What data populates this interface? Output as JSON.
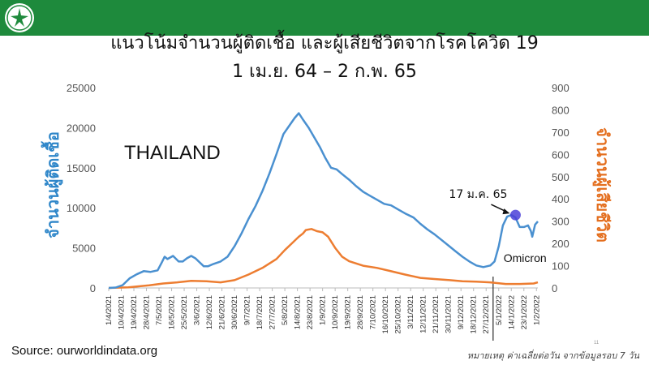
{
  "colors": {
    "header": "#1e8a3c",
    "cases": "#4a90d0",
    "deaths": "#ed7d31",
    "left_axis_label": "#2e86c9",
    "right_axis_label": "#e46f1f",
    "highlight_marker": "#4b3fd8"
  },
  "logo": {
    "icon": "ministry-of-public-health-emblem-icon"
  },
  "chart_data": {
    "type": "line",
    "title": "แนวโน้มจำนวนผู้ติดเชื้อ และผู้เสียชีวิตจากโรคโควิด 19",
    "subtitle": "1 เม.ย. 64 – 2 ก.พ. 65",
    "country_label": "THAILAND",
    "y_left_label": "จำนวนผู้ติดเชื้อ",
    "y_right_label": "จำนวนผู้เสียชีวิต",
    "y_left_lim": [
      0,
      25000
    ],
    "y_left_ticks": [
      "0",
      "5000",
      "10000",
      "15000",
      "20000",
      "25000"
    ],
    "y_right_lim": [
      0,
      900
    ],
    "y_right_ticks": [
      "0",
      "100",
      "200",
      "300",
      "400",
      "500",
      "600",
      "700",
      "800",
      "900"
    ],
    "x_range": [
      "2021-04-01",
      "2022-02-02"
    ],
    "x_ticks": [
      "1/4/2021",
      "10/4/2021",
      "19/4/2021",
      "28/4/2021",
      "7/5/2021",
      "16/5/2021",
      "25/5/2021",
      "3/6/2021",
      "12/6/2021",
      "21/6/2021",
      "30/6/2021",
      "9/7/2021",
      "18/7/2021",
      "27/7/2021",
      "5/8/2021",
      "14/8/2021",
      "23/8/2021",
      "1/9/2021",
      "10/9/2021",
      "19/9/2021",
      "28/9/2021",
      "7/10/2021",
      "16/10/2021",
      "25/10/2021",
      "3/11/2021",
      "12/11/2021",
      "21/11/2021",
      "30/11/2021",
      "9/12/2021",
      "18/12/2021",
      "27/12/2021",
      "5/1/2022",
      "14/1/2022",
      "23/1/2022",
      "1/2/2022"
    ],
    "grid": false,
    "series": [
      {
        "name": "จำนวนผู้ติดเชื้อ",
        "axis": "left",
        "x": [
          "2021-04-01",
          "2021-04-06",
          "2021-04-11",
          "2021-04-16",
          "2021-04-21",
          "2021-04-26",
          "2021-05-01",
          "2021-05-06",
          "2021-05-09",
          "2021-05-11",
          "2021-05-13",
          "2021-05-17",
          "2021-05-21",
          "2021-05-24",
          "2021-05-27",
          "2021-05-30",
          "2021-06-02",
          "2021-06-05",
          "2021-06-08",
          "2021-06-11",
          "2021-06-15",
          "2021-06-20",
          "2021-06-25",
          "2021-06-30",
          "2021-07-05",
          "2021-07-10",
          "2021-07-15",
          "2021-07-20",
          "2021-07-25",
          "2021-07-30",
          "2021-08-04",
          "2021-08-08",
          "2021-08-12",
          "2021-08-15",
          "2021-08-18",
          "2021-08-22",
          "2021-08-26",
          "2021-08-30",
          "2021-09-03",
          "2021-09-07",
          "2021-09-11",
          "2021-09-15",
          "2021-09-20",
          "2021-09-25",
          "2021-09-30",
          "2021-10-05",
          "2021-10-10",
          "2021-10-15",
          "2021-10-20",
          "2021-10-25",
          "2021-10-30",
          "2021-11-05",
          "2021-11-10",
          "2021-11-15",
          "2021-11-20",
          "2021-11-25",
          "2021-11-30",
          "2021-12-05",
          "2021-12-10",
          "2021-12-15",
          "2021-12-20",
          "2021-12-25",
          "2021-12-30",
          "2022-01-02",
          "2022-01-05",
          "2022-01-08",
          "2022-01-11",
          "2022-01-14",
          "2022-01-17",
          "2022-01-20",
          "2022-01-23",
          "2022-01-26",
          "2022-01-28",
          "2022-01-29",
          "2022-01-31",
          "2022-02-02"
        ],
        "values": [
          0,
          50,
          350,
          1200,
          1700,
          2100,
          2000,
          2200,
          3200,
          3900,
          3600,
          4000,
          3300,
          3300,
          3700,
          4000,
          3700,
          3200,
          2700,
          2700,
          3000,
          3300,
          3900,
          5200,
          6800,
          8600,
          10200,
          12100,
          14300,
          16700,
          19200,
          20200,
          21200,
          21800,
          21000,
          20000,
          18800,
          17600,
          16200,
          15000,
          14800,
          14200,
          13500,
          12700,
          12000,
          11500,
          11000,
          10500,
          10300,
          9800,
          9300,
          8800,
          8000,
          7300,
          6700,
          6000,
          5300,
          4600,
          3900,
          3300,
          2800,
          2600,
          2800,
          3300,
          5200,
          7800,
          8900,
          9100,
          8800,
          7600,
          7600,
          7800,
          7100,
          6400,
          7900,
          8300
        ]
      },
      {
        "name": "จำนวนผู้เสียชีวิต",
        "axis": "right",
        "x": [
          "2021-04-01",
          "2021-04-15",
          "2021-04-30",
          "2021-05-10",
          "2021-05-20",
          "2021-05-30",
          "2021-06-10",
          "2021-06-20",
          "2021-06-30",
          "2021-07-10",
          "2021-07-20",
          "2021-07-30",
          "2021-08-05",
          "2021-08-10",
          "2021-08-15",
          "2021-08-18",
          "2021-08-20",
          "2021-08-24",
          "2021-08-28",
          "2021-09-01",
          "2021-09-05",
          "2021-09-10",
          "2021-09-15",
          "2021-09-20",
          "2021-09-30",
          "2021-10-10",
          "2021-10-20",
          "2021-10-30",
          "2021-11-10",
          "2021-11-20",
          "2021-12-01",
          "2021-12-10",
          "2021-12-20",
          "2021-12-30",
          "2022-01-10",
          "2022-01-20",
          "2022-01-30",
          "2022-02-02"
        ],
        "values": [
          0,
          3,
          12,
          20,
          25,
          32,
          30,
          25,
          35,
          60,
          90,
          130,
          170,
          200,
          230,
          245,
          260,
          265,
          255,
          250,
          230,
          180,
          140,
          120,
          100,
          90,
          75,
          60,
          45,
          40,
          35,
          30,
          28,
          25,
          18,
          18,
          20,
          25
        ]
      }
    ],
    "annotations": [
      {
        "label": "17 ม.ค. 65",
        "x": "2022-01-17",
        "y": 9100,
        "axis": "left"
      },
      {
        "label": "Omicron",
        "x": "2022-01-05",
        "axis": "left"
      }
    ],
    "vline": {
      "x": "2022-01-01"
    }
  },
  "source": "Source: ourworldindata.org",
  "note": "หมายเหตุ ค่าเฉลี่ยต่อวัน จากข้อมูลรอบ 7 วัน",
  "page_number": "11"
}
